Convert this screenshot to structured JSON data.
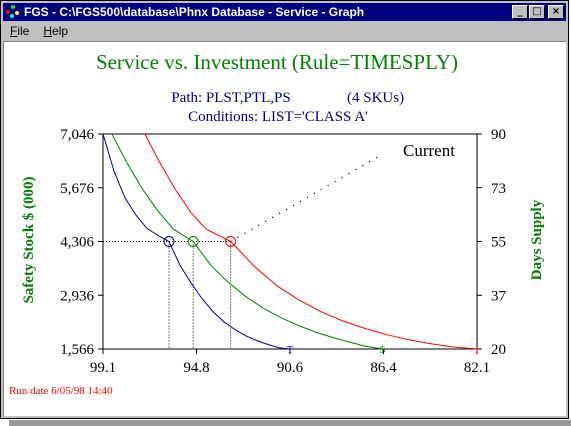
{
  "window": {
    "title": "FGS - C:\\FGS500\\database\\Phnx Database - Service - Graph",
    "minimize_label": "_",
    "maximize_label": "□",
    "close_label": "×"
  },
  "menu": {
    "items": [
      {
        "first": "F",
        "rest": "ile"
      },
      {
        "first": "H",
        "rest": "elp"
      }
    ]
  },
  "chart_data": {
    "type": "line",
    "title": "Service vs. Investment (Rule=TIMESPLY)",
    "path_label": "Path: PLST,PTL,PS",
    "sku_label": "(4 SKUs)",
    "conditions_label": "Conditions: LIST='CLASS A'",
    "ylabel": "Safety Stock $ (000)",
    "y2label": "Days Supply",
    "annotation": "Current",
    "xlim": [
      99.1,
      82.1
    ],
    "x_ticks": [
      "99.1",
      "94.8",
      "90.6",
      "86.4",
      "82.1"
    ],
    "ylim": [
      1566,
      7046
    ],
    "y_ticks": [
      "7,046",
      "5,676",
      "4,306",
      "2,936",
      "1,566"
    ],
    "y2lim": [
      20,
      90
    ],
    "y2_ticks": [
      "90",
      "73",
      "55",
      "37",
      "20"
    ],
    "series": [
      {
        "color": "#000080",
        "end_marker": "T",
        "current": [
          96.1,
          4306
        ],
        "x": [
          99.1,
          98.6,
          98.1,
          97.6,
          97.1,
          96.6,
          96.1,
          95.6,
          95.1,
          94.6,
          94.1,
          93.6,
          93.1,
          92.6,
          92.1,
          91.6,
          91.1,
          90.6
        ],
        "y": [
          7046,
          6100,
          5420,
          4980,
          4640,
          4460,
          4306,
          3700,
          3250,
          2850,
          2520,
          2260,
          2060,
          1900,
          1780,
          1680,
          1600,
          1566
        ]
      },
      {
        "color": "#008000",
        "end_marker": "$",
        "current": [
          95.0,
          4306
        ],
        "x": [
          98.7,
          98.0,
          97.3,
          96.6,
          95.9,
          95.0,
          94.2,
          93.4,
          92.6,
          91.8,
          91.0,
          90.2,
          89.4,
          88.6,
          87.8,
          87.2,
          86.4
        ],
        "y": [
          7046,
          6300,
          5640,
          5080,
          4620,
          4306,
          3700,
          3260,
          2900,
          2600,
          2360,
          2160,
          1990,
          1850,
          1730,
          1640,
          1566
        ]
      },
      {
        "color": "#ff0000",
        "end_marker": "I",
        "current": [
          93.3,
          4306
        ],
        "x": [
          97.2,
          96.5,
          95.8,
          95.1,
          94.4,
          93.3,
          92.2,
          91.2,
          90.2,
          89.2,
          88.2,
          87.2,
          86.2,
          85.2,
          84.2,
          83.2,
          82.1
        ],
        "y": [
          7046,
          6300,
          5620,
          5040,
          4620,
          4306,
          3660,
          3180,
          2820,
          2520,
          2280,
          2090,
          1930,
          1800,
          1700,
          1620,
          1566
        ]
      }
    ],
    "current_trend": {
      "x": [
        93.3,
        86.4
      ],
      "y": [
        4306,
        6530
      ]
    }
  },
  "footer": {
    "run_date": "Run date  6/05/98 14:40"
  }
}
